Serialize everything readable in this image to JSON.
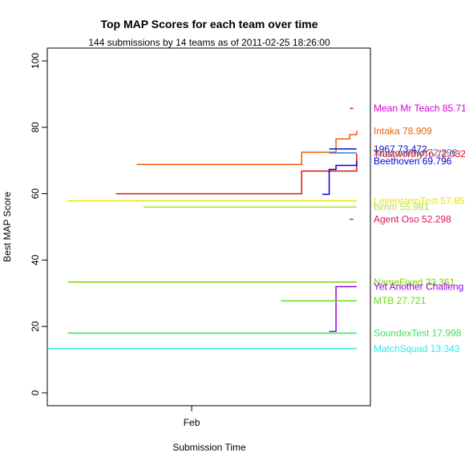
{
  "chart_data": {
    "type": "line",
    "title": "Top MAP Scores for each team over time",
    "subtitle": "144 submissions by 14 teams as of  2011-02-25 18:26:00",
    "xlabel": "Submission Time",
    "ylabel": "Best MAP Score",
    "x_unit": "date",
    "xlim": [
      "2011-01-11",
      "2011-02-27"
    ],
    "ylim": [
      0,
      100
    ],
    "x_ticks": [
      {
        "value": "2011-02-01",
        "label": "Feb"
      }
    ],
    "y_ticks": [
      0,
      20,
      40,
      60,
      80,
      100
    ],
    "step_lines": true,
    "grid": false,
    "legend": "labels at right end of each series",
    "series": [
      {
        "name": "Mean Mr Teach",
        "label": "Mean Mr Teach 85.71",
        "color": "#d600d6",
        "x": [
          "2011-02-24",
          "2011-02-24T12:00"
        ],
        "y": [
          85.71,
          85.71
        ]
      },
      {
        "name": "Intaka",
        "label": "Intaka 78.909",
        "color": "#ee6000",
        "x": [
          "2011-01-24",
          "2011-02-17",
          "2011-02-21",
          "2011-02-22",
          "2011-02-24",
          "2011-02-25"
        ],
        "y": [
          68.8,
          72.5,
          72.5,
          76.5,
          77.8,
          78.909
        ]
      },
      {
        "name": "1967",
        "label": "1967 73.472",
        "color": "#1010b8",
        "x": [
          "2011-02-21",
          "2011-02-25"
        ],
        "y": [
          73.472,
          73.472
        ]
      },
      {
        "name": "Xcuzomfrnd",
        "label": "Xcuzomfrnd 72.296",
        "color": "#2a7fe0",
        "x": [
          "2011-02-21",
          "2011-02-25"
        ],
        "y": [
          72.296,
          72.296
        ]
      },
      {
        "name": "Trustworthy",
        "label": "TrustworthyTo 72.032",
        "color": "#e01414",
        "x": [
          "2011-01-21",
          "2011-02-17",
          "2011-02-25"
        ],
        "y": [
          60.0,
          66.8,
          72.032
        ]
      },
      {
        "name": "Beethoven",
        "label": "Beethoven 69.796",
        "color": "#0000e0",
        "x": [
          "2011-02-20",
          "2011-02-21",
          "2011-02-22",
          "2011-02-25"
        ],
        "y": [
          59.8,
          67.3,
          68.5,
          69.796
        ]
      },
      {
        "name": "LevensteinTest",
        "label": "LevensteinTest 57.85",
        "color": "#e6e600",
        "x": [
          "2011-01-14",
          "2011-02-25"
        ],
        "y": [
          57.85,
          57.85
        ]
      },
      {
        "name": "tsmm",
        "label": "tsmm 55.981",
        "color": "#b0e030",
        "x": [
          "2011-01-25",
          "2011-02-25"
        ],
        "y": [
          55.981,
          55.981
        ]
      },
      {
        "name": "Agent Oso",
        "label": "Agent Oso 52.298",
        "color": "#e0105a",
        "x": [
          "2011-02-24",
          "2011-02-24T12:00"
        ],
        "y": [
          52.298,
          52.298
        ]
      },
      {
        "name": "NameFixed",
        "label": "NameFixed 33.361",
        "color": "#80d000",
        "x": [
          "2011-01-14",
          "2011-02-25"
        ],
        "y": [
          33.361,
          33.361
        ]
      },
      {
        "name": "Yet Another Challenger",
        "label": "Yet Another Challeng",
        "color": "#9a00e8",
        "x": [
          "2011-02-21",
          "2011-02-22",
          "2011-02-25"
        ],
        "y": [
          18.5,
          32.0,
          32.0
        ]
      },
      {
        "name": "MTB",
        "label": "MTB 27.721",
        "color": "#66e010",
        "x": [
          "2011-02-14",
          "2011-02-25"
        ],
        "y": [
          27.721,
          27.721
        ]
      },
      {
        "name": "SoundexTest",
        "label": "SoundexTest 17.998",
        "color": "#40e060",
        "x": [
          "2011-01-14",
          "2011-02-25"
        ],
        "y": [
          17.998,
          17.998
        ]
      },
      {
        "name": "MatchSquad",
        "label": "MatchSquad 13.343",
        "color": "#30e8e8",
        "x": [
          "2011-01-11",
          "2011-02-25"
        ],
        "y": [
          13.343,
          13.343
        ]
      }
    ]
  }
}
